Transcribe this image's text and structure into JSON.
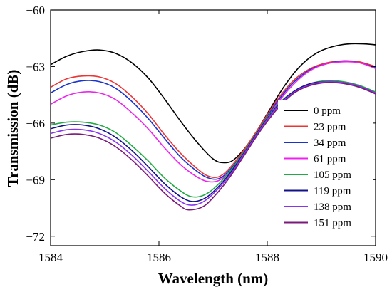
{
  "chart_data": {
    "type": "line",
    "xlabel": "Wavelength (nm)",
    "ylabel": "Transmission (dB)",
    "xlim": [
      1584,
      1590
    ],
    "ylim": [
      -72.5,
      -60
    ],
    "xticks": [
      1584,
      1586,
      1588,
      1590
    ],
    "xtick_labels": [
      "1584",
      "1586",
      "1588",
      "1590"
    ],
    "yticks": [
      -72,
      -69,
      -66,
      -63,
      -60
    ],
    "ytick_labels": [
      "−72",
      "−69",
      "−66",
      "−63",
      "−60"
    ],
    "grid": false,
    "legend_position": "right",
    "series": [
      {
        "name": "0 ppm",
        "color": "#000000",
        "points": [
          [
            1584.0,
            -62.9
          ],
          [
            1584.3,
            -62.45
          ],
          [
            1584.6,
            -62.2
          ],
          [
            1584.9,
            -62.12
          ],
          [
            1585.2,
            -62.3
          ],
          [
            1585.5,
            -62.8
          ],
          [
            1585.8,
            -63.6
          ],
          [
            1586.1,
            -64.7
          ],
          [
            1586.4,
            -65.9
          ],
          [
            1586.7,
            -67.0
          ],
          [
            1587.0,
            -67.9
          ],
          [
            1587.2,
            -68.1
          ],
          [
            1587.4,
            -67.9
          ],
          [
            1587.7,
            -66.9
          ],
          [
            1588.0,
            -65.5
          ],
          [
            1588.3,
            -64.1
          ],
          [
            1588.6,
            -63.0
          ],
          [
            1588.9,
            -62.3
          ],
          [
            1589.2,
            -61.95
          ],
          [
            1589.5,
            -61.8
          ],
          [
            1589.8,
            -61.8
          ],
          [
            1590.0,
            -61.85
          ]
        ]
      },
      {
        "name": "23 ppm",
        "color": "#ee3333",
        "points": [
          [
            1584.0,
            -64.1
          ],
          [
            1584.3,
            -63.65
          ],
          [
            1584.6,
            -63.5
          ],
          [
            1584.9,
            -63.55
          ],
          [
            1585.2,
            -63.9
          ],
          [
            1585.5,
            -64.6
          ],
          [
            1585.8,
            -65.5
          ],
          [
            1586.1,
            -66.6
          ],
          [
            1586.4,
            -67.6
          ],
          [
            1586.7,
            -68.4
          ],
          [
            1586.9,
            -68.8
          ],
          [
            1587.1,
            -68.85
          ],
          [
            1587.3,
            -68.4
          ],
          [
            1587.6,
            -67.3
          ],
          [
            1587.9,
            -66.0
          ],
          [
            1588.2,
            -64.7
          ],
          [
            1588.5,
            -63.7
          ],
          [
            1588.8,
            -63.1
          ],
          [
            1589.1,
            -62.8
          ],
          [
            1589.4,
            -62.7
          ],
          [
            1589.7,
            -62.75
          ],
          [
            1590.0,
            -63.0
          ]
        ]
      },
      {
        "name": "34 ppm",
        "color": "#1a33cc",
        "points": [
          [
            1584.0,
            -64.4
          ],
          [
            1584.3,
            -63.95
          ],
          [
            1584.6,
            -63.75
          ],
          [
            1584.9,
            -63.8
          ],
          [
            1585.2,
            -64.15
          ],
          [
            1585.5,
            -64.85
          ],
          [
            1585.8,
            -65.75
          ],
          [
            1586.1,
            -66.8
          ],
          [
            1586.4,
            -67.8
          ],
          [
            1586.7,
            -68.55
          ],
          [
            1586.9,
            -68.9
          ],
          [
            1587.1,
            -68.95
          ],
          [
            1587.3,
            -68.5
          ],
          [
            1587.6,
            -67.4
          ],
          [
            1587.9,
            -66.1
          ],
          [
            1588.2,
            -64.8
          ],
          [
            1588.5,
            -63.8
          ],
          [
            1588.8,
            -63.15
          ],
          [
            1589.1,
            -62.85
          ],
          [
            1589.4,
            -62.7
          ],
          [
            1589.7,
            -62.8
          ],
          [
            1590.0,
            -63.05
          ]
        ]
      },
      {
        "name": "61 ppm",
        "color": "#ee22ee",
        "points": [
          [
            1584.0,
            -65.0
          ],
          [
            1584.3,
            -64.55
          ],
          [
            1584.6,
            -64.35
          ],
          [
            1584.9,
            -64.4
          ],
          [
            1585.2,
            -64.75
          ],
          [
            1585.5,
            -65.45
          ],
          [
            1585.8,
            -66.3
          ],
          [
            1586.1,
            -67.3
          ],
          [
            1586.4,
            -68.2
          ],
          [
            1586.7,
            -68.85
          ],
          [
            1586.9,
            -69.1
          ],
          [
            1587.1,
            -69.05
          ],
          [
            1587.3,
            -68.6
          ],
          [
            1587.6,
            -67.5
          ],
          [
            1587.9,
            -66.2
          ],
          [
            1588.2,
            -64.9
          ],
          [
            1588.5,
            -63.9
          ],
          [
            1588.8,
            -63.2
          ],
          [
            1589.1,
            -62.85
          ],
          [
            1589.4,
            -62.75
          ],
          [
            1589.7,
            -62.8
          ],
          [
            1590.0,
            -63.1
          ]
        ]
      },
      {
        "name": "105 ppm",
        "color": "#22aa44",
        "points": [
          [
            1584.0,
            -66.1
          ],
          [
            1584.3,
            -65.95
          ],
          [
            1584.6,
            -65.95
          ],
          [
            1584.9,
            -66.1
          ],
          [
            1585.2,
            -66.5
          ],
          [
            1585.5,
            -67.2
          ],
          [
            1585.8,
            -68.0
          ],
          [
            1586.1,
            -68.9
          ],
          [
            1586.4,
            -69.6
          ],
          [
            1586.6,
            -69.9
          ],
          [
            1586.8,
            -69.85
          ],
          [
            1587.0,
            -69.5
          ],
          [
            1587.3,
            -68.6
          ],
          [
            1587.6,
            -67.4
          ],
          [
            1587.9,
            -66.1
          ],
          [
            1588.2,
            -65.0
          ],
          [
            1588.5,
            -64.3
          ],
          [
            1588.8,
            -63.9
          ],
          [
            1589.1,
            -63.75
          ],
          [
            1589.4,
            -63.8
          ],
          [
            1589.7,
            -64.0
          ],
          [
            1590.0,
            -64.35
          ]
        ]
      },
      {
        "name": "119 ppm",
        "color": "#111188",
        "points": [
          [
            1584.0,
            -66.3
          ],
          [
            1584.3,
            -66.1
          ],
          [
            1584.6,
            -66.1
          ],
          [
            1584.9,
            -66.3
          ],
          [
            1585.2,
            -66.75
          ],
          [
            1585.5,
            -67.45
          ],
          [
            1585.8,
            -68.3
          ],
          [
            1586.1,
            -69.2
          ],
          [
            1586.4,
            -69.9
          ],
          [
            1586.6,
            -70.15
          ],
          [
            1586.8,
            -70.05
          ],
          [
            1587.0,
            -69.65
          ],
          [
            1587.3,
            -68.7
          ],
          [
            1587.6,
            -67.45
          ],
          [
            1587.9,
            -66.15
          ],
          [
            1588.2,
            -65.05
          ],
          [
            1588.5,
            -64.3
          ],
          [
            1588.8,
            -63.9
          ],
          [
            1589.1,
            -63.8
          ],
          [
            1589.4,
            -63.85
          ],
          [
            1589.7,
            -64.05
          ],
          [
            1590.0,
            -64.4
          ]
        ]
      },
      {
        "name": "138 ppm",
        "color": "#8833ee",
        "points": [
          [
            1584.0,
            -66.55
          ],
          [
            1584.3,
            -66.35
          ],
          [
            1584.6,
            -66.35
          ],
          [
            1584.9,
            -66.55
          ],
          [
            1585.2,
            -67.0
          ],
          [
            1585.5,
            -67.7
          ],
          [
            1585.8,
            -68.55
          ],
          [
            1586.1,
            -69.45
          ],
          [
            1586.4,
            -70.15
          ],
          [
            1586.6,
            -70.35
          ],
          [
            1586.8,
            -70.2
          ],
          [
            1587.0,
            -69.75
          ],
          [
            1587.3,
            -68.8
          ],
          [
            1587.6,
            -67.5
          ],
          [
            1587.9,
            -66.2
          ],
          [
            1588.2,
            -65.1
          ],
          [
            1588.5,
            -64.35
          ],
          [
            1588.8,
            -63.95
          ],
          [
            1589.1,
            -63.8
          ],
          [
            1589.4,
            -63.85
          ],
          [
            1589.7,
            -64.05
          ],
          [
            1590.0,
            -64.4
          ]
        ]
      },
      {
        "name": "151 ppm",
        "color": "#7a1a7a",
        "points": [
          [
            1584.0,
            -66.8
          ],
          [
            1584.3,
            -66.6
          ],
          [
            1584.6,
            -66.6
          ],
          [
            1584.9,
            -66.8
          ],
          [
            1585.2,
            -67.25
          ],
          [
            1585.5,
            -67.95
          ],
          [
            1585.8,
            -68.8
          ],
          [
            1586.1,
            -69.7
          ],
          [
            1586.4,
            -70.4
          ],
          [
            1586.55,
            -70.6
          ],
          [
            1586.8,
            -70.45
          ],
          [
            1587.0,
            -69.95
          ],
          [
            1587.3,
            -68.9
          ],
          [
            1587.6,
            -67.6
          ],
          [
            1587.9,
            -66.3
          ],
          [
            1588.2,
            -65.2
          ],
          [
            1588.5,
            -64.4
          ],
          [
            1588.8,
            -64.0
          ],
          [
            1589.1,
            -63.85
          ],
          [
            1589.4,
            -63.9
          ],
          [
            1589.7,
            -64.1
          ],
          [
            1590.0,
            -64.45
          ]
        ]
      }
    ]
  }
}
